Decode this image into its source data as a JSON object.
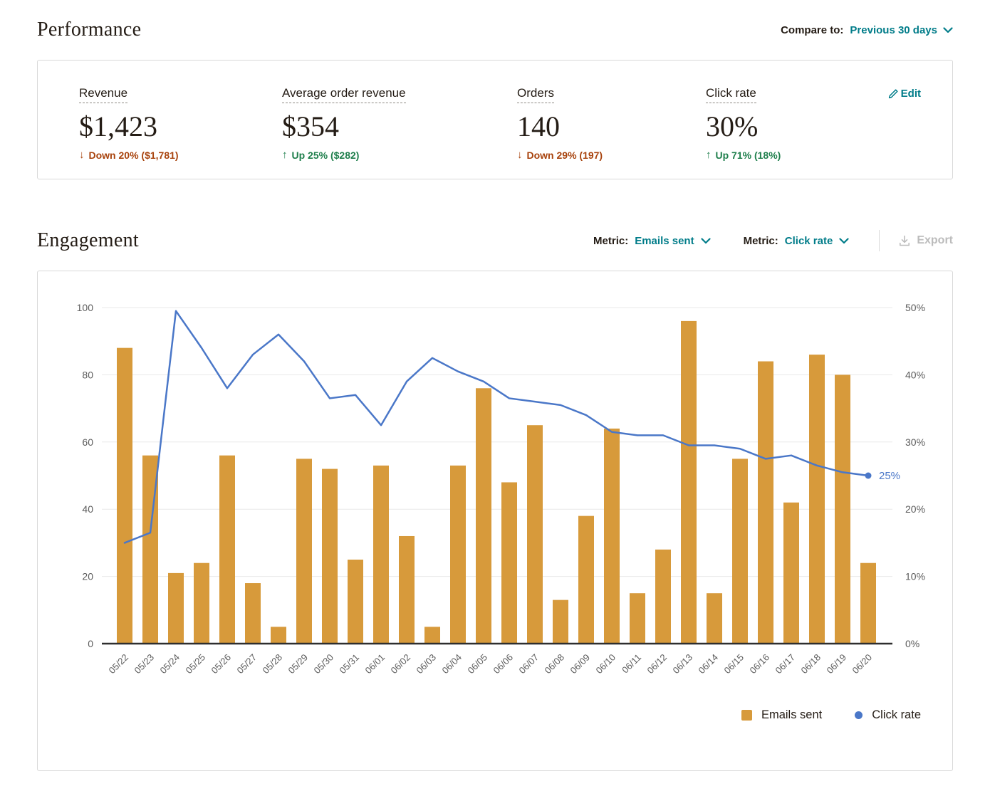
{
  "colors": {
    "accent": "#007c89",
    "text": "#241c15",
    "up": "#1f7f4c",
    "down": "#a8430d",
    "muted": "#5c5c5c",
    "disabled": "#bcbcbc",
    "grid": "#e8e8e8",
    "axis_line": "#2e2e2e",
    "bar": "#d79a3b",
    "line": "#4a77c8"
  },
  "icons": {
    "compare_chevron": "chevron-down-icon",
    "metric_chevron": "chevron-down-icon",
    "edit": "pencil-icon",
    "export": "download-icon",
    "up": "↑",
    "down": "↓"
  },
  "performance": {
    "title": "Performance",
    "compare_label": "Compare to:",
    "compare_value": "Previous 30 days",
    "edit_label": "Edit",
    "metrics": [
      {
        "label": "Revenue",
        "value": "$1,423",
        "delta": "Down 20% ($1,781)",
        "direction": "down"
      },
      {
        "label": "Average order revenue",
        "value": "$354",
        "delta": "Up 25% ($282)",
        "direction": "up"
      },
      {
        "label": "Orders",
        "value": "140",
        "delta": "Down 29% (197)",
        "direction": "down"
      },
      {
        "label": "Click rate",
        "value": "30%",
        "delta": "Up 71% (18%)",
        "direction": "up"
      }
    ]
  },
  "engagement": {
    "title": "Engagement",
    "metric1_label": "Metric:",
    "metric1_value": "Emails sent",
    "metric2_label": "Metric:",
    "metric2_value": "Click rate",
    "export_label": "Export"
  },
  "chart_data": {
    "type": "bar+line",
    "title": "Engagement",
    "grid": true,
    "legend_position": "bottom-right",
    "categories": [
      "05/22",
      "05/23",
      "05/24",
      "05/25",
      "05/26",
      "05/27",
      "05/28",
      "05/29",
      "05/30",
      "05/31",
      "06/01",
      "06/02",
      "06/03",
      "06/04",
      "06/05",
      "06/06",
      "06/07",
      "06/08",
      "06/09",
      "06/10",
      "06/11",
      "06/12",
      "06/13",
      "06/14",
      "06/15",
      "06/16",
      "06/17",
      "06/18",
      "06/19",
      "06/20"
    ],
    "series": [
      {
        "name": "Emails sent",
        "type": "bar",
        "axis": "left",
        "color": "#d79a3b",
        "values": [
          88,
          56,
          21,
          24,
          56,
          18,
          5,
          55,
          52,
          25,
          53,
          32,
          5,
          53,
          76,
          48,
          65,
          13,
          38,
          64,
          15,
          28,
          96,
          15,
          55,
          84,
          42,
          86,
          80,
          24
        ]
      },
      {
        "name": "Click rate",
        "type": "line",
        "axis": "right",
        "color": "#4a77c8",
        "values": [
          15,
          16.5,
          49.5,
          44,
          38,
          43,
          46,
          42,
          36.5,
          37,
          32.5,
          39,
          42.5,
          40.5,
          39,
          36.5,
          36,
          35.5,
          34,
          31.5,
          31,
          31,
          29.5,
          29.5,
          29,
          27.5,
          28,
          26.5,
          25.5,
          25
        ]
      }
    ],
    "left_axis": {
      "min": 0,
      "max": 100,
      "ticks": [
        0,
        20,
        40,
        60,
        80,
        100
      ]
    },
    "right_axis": {
      "min": 0,
      "max": 50,
      "tick_labels": [
        "0%",
        "10%",
        "20%",
        "30%",
        "40%",
        "50%"
      ]
    },
    "annotation": {
      "text": "25%",
      "attached_to": "last-line-point"
    },
    "legend": [
      {
        "label": "Emails sent",
        "marker": "square"
      },
      {
        "label": "Click rate",
        "marker": "dot"
      }
    ]
  }
}
